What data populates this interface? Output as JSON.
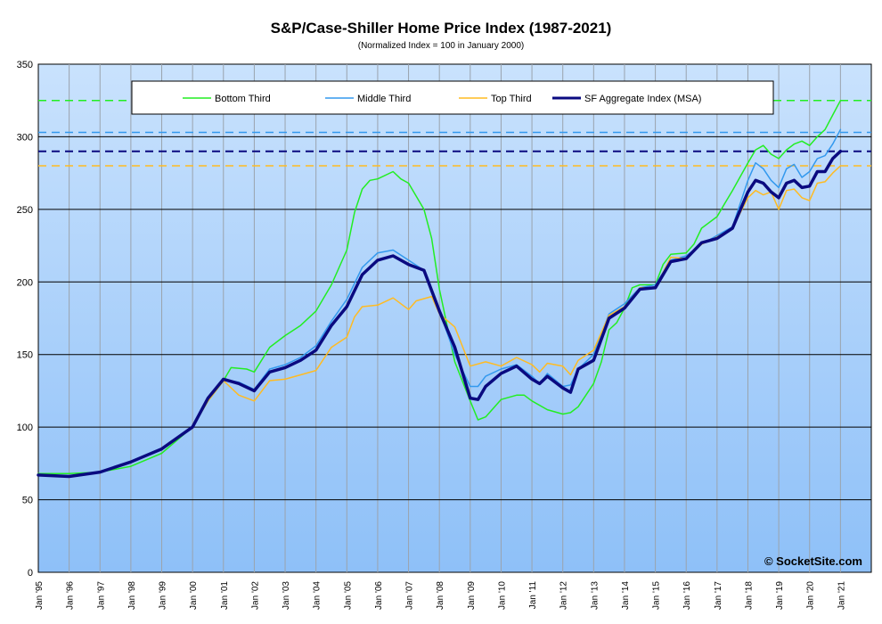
{
  "chart_data": {
    "type": "line",
    "title": "S&P/Case-Shiller Home Price Index (1987-2021)",
    "subtitle": "(Normalized Index = 100 in January 2000)",
    "xlabel": "",
    "ylabel": "",
    "ylim": [
      0,
      350
    ],
    "yticks": [
      0,
      50,
      100,
      150,
      200,
      250,
      300,
      350
    ],
    "xlim": [
      1995.0,
      2022.0
    ],
    "xtick_labels": [
      "Jan '95",
      "Jan '96",
      "Jan '97",
      "Jan '98",
      "Jan '99",
      "Jan '00",
      "Jan '01",
      "Jan '02",
      "Jan '03",
      "Jan '04",
      "Jan '05",
      "Jan '06",
      "Jan '07",
      "Jan '08",
      "Jan '09",
      "Jan '10",
      "Jan '11",
      "Jan '12",
      "Jan '13",
      "Jan '14",
      "Jan '15",
      "Jan '16",
      "Jan '17",
      "Jan '18",
      "Jan '19",
      "Jan '20",
      "Jan '21"
    ],
    "grid": true,
    "legend": "top",
    "watermark": "© SocketSite.com",
    "reference_lines": [
      {
        "series": "Bottom Third",
        "y": 325
      },
      {
        "series": "Middle Third",
        "y": 303
      },
      {
        "series": "SF Aggregate Index (MSA)",
        "y": 290
      },
      {
        "series": "Top Third",
        "y": 280
      }
    ],
    "series": [
      {
        "name": "Bottom Third",
        "color": "#22ee22",
        "width": 1.5,
        "points": [
          [
            1995.0,
            68
          ],
          [
            1996.0,
            68
          ],
          [
            1997.0,
            69
          ],
          [
            1998.0,
            73
          ],
          [
            1999.0,
            82
          ],
          [
            2000.0,
            100
          ],
          [
            2000.5,
            118
          ],
          [
            2001.0,
            132
          ],
          [
            2001.25,
            141
          ],
          [
            2001.75,
            140
          ],
          [
            2002.0,
            138
          ],
          [
            2002.5,
            155
          ],
          [
            2003.0,
            163
          ],
          [
            2003.5,
            170
          ],
          [
            2004.0,
            180
          ],
          [
            2004.5,
            198
          ],
          [
            2005.0,
            222
          ],
          [
            2005.25,
            248
          ],
          [
            2005.5,
            264
          ],
          [
            2005.75,
            270
          ],
          [
            2006.0,
            271
          ],
          [
            2006.5,
            276
          ],
          [
            2006.75,
            271
          ],
          [
            2007.0,
            268
          ],
          [
            2007.5,
            250
          ],
          [
            2007.75,
            230
          ],
          [
            2008.0,
            195
          ],
          [
            2008.5,
            145
          ],
          [
            2009.0,
            118
          ],
          [
            2009.25,
            105
          ],
          [
            2009.5,
            107
          ],
          [
            2010.0,
            119
          ],
          [
            2010.5,
            122
          ],
          [
            2010.75,
            122
          ],
          [
            2011.0,
            118
          ],
          [
            2011.5,
            112
          ],
          [
            2012.0,
            109
          ],
          [
            2012.25,
            110
          ],
          [
            2012.5,
            114
          ],
          [
            2013.0,
            130
          ],
          [
            2013.25,
            145
          ],
          [
            2013.5,
            167
          ],
          [
            2013.75,
            172
          ],
          [
            2014.0,
            182
          ],
          [
            2014.25,
            196
          ],
          [
            2014.5,
            198
          ],
          [
            2015.0,
            198
          ],
          [
            2015.25,
            212
          ],
          [
            2015.5,
            219
          ],
          [
            2016.0,
            220
          ],
          [
            2016.25,
            226
          ],
          [
            2016.5,
            237
          ],
          [
            2017.0,
            245
          ],
          [
            2017.25,
            254
          ],
          [
            2017.5,
            263
          ],
          [
            2018.0,
            282
          ],
          [
            2018.25,
            291
          ],
          [
            2018.5,
            294
          ],
          [
            2018.75,
            288
          ],
          [
            2019.0,
            285
          ],
          [
            2019.25,
            291
          ],
          [
            2019.5,
            295
          ],
          [
            2019.75,
            297
          ],
          [
            2020.0,
            294
          ],
          [
            2020.25,
            300
          ],
          [
            2020.5,
            305
          ],
          [
            2020.75,
            315
          ],
          [
            2021.0,
            325
          ]
        ]
      },
      {
        "name": "Middle Third",
        "color": "#3399ee",
        "width": 1.5,
        "points": [
          [
            1995.0,
            67
          ],
          [
            1996.0,
            66
          ],
          [
            1997.0,
            69
          ],
          [
            1998.0,
            76
          ],
          [
            1999.0,
            85
          ],
          [
            2000.0,
            100
          ],
          [
            2000.5,
            120
          ],
          [
            2001.0,
            133
          ],
          [
            2001.5,
            131
          ],
          [
            2002.0,
            126
          ],
          [
            2002.5,
            140
          ],
          [
            2003.0,
            143
          ],
          [
            2003.5,
            148
          ],
          [
            2004.0,
            156
          ],
          [
            2004.5,
            173
          ],
          [
            2005.0,
            188
          ],
          [
            2005.5,
            210
          ],
          [
            2006.0,
            220
          ],
          [
            2006.5,
            222
          ],
          [
            2007.0,
            215
          ],
          [
            2007.5,
            208
          ],
          [
            2008.0,
            180
          ],
          [
            2008.5,
            150
          ],
          [
            2009.0,
            128
          ],
          [
            2009.25,
            128
          ],
          [
            2009.5,
            135
          ],
          [
            2010.0,
            140
          ],
          [
            2010.5,
            143
          ],
          [
            2011.0,
            135
          ],
          [
            2011.25,
            130
          ],
          [
            2011.5,
            137
          ],
          [
            2012.0,
            128
          ],
          [
            2012.25,
            129
          ],
          [
            2012.5,
            140
          ],
          [
            2013.0,
            150
          ],
          [
            2013.5,
            178
          ],
          [
            2014.0,
            185
          ],
          [
            2014.5,
            196
          ],
          [
            2015.0,
            198
          ],
          [
            2015.5,
            215
          ],
          [
            2016.0,
            218
          ],
          [
            2016.5,
            226
          ],
          [
            2017.0,
            232
          ],
          [
            2017.5,
            238
          ],
          [
            2018.0,
            270
          ],
          [
            2018.25,
            282
          ],
          [
            2018.5,
            278
          ],
          [
            2018.75,
            270
          ],
          [
            2019.0,
            265
          ],
          [
            2019.25,
            278
          ],
          [
            2019.5,
            281
          ],
          [
            2019.75,
            272
          ],
          [
            2020.0,
            276
          ],
          [
            2020.25,
            285
          ],
          [
            2020.5,
            287
          ],
          [
            2020.75,
            295
          ],
          [
            2021.0,
            305
          ]
        ]
      },
      {
        "name": "Top Third",
        "color": "#ffbb22",
        "width": 1.5,
        "points": [
          [
            1995.0,
            67
          ],
          [
            1996.0,
            66
          ],
          [
            1997.0,
            69
          ],
          [
            1998.0,
            76
          ],
          [
            1999.0,
            85
          ],
          [
            2000.0,
            100
          ],
          [
            2000.5,
            118
          ],
          [
            2001.0,
            132
          ],
          [
            2001.5,
            122
          ],
          [
            2002.0,
            118
          ],
          [
            2002.5,
            132
          ],
          [
            2003.0,
            133
          ],
          [
            2003.5,
            136
          ],
          [
            2004.0,
            139
          ],
          [
            2004.5,
            155
          ],
          [
            2005.0,
            162
          ],
          [
            2005.25,
            176
          ],
          [
            2005.5,
            183
          ],
          [
            2006.0,
            184
          ],
          [
            2006.5,
            189
          ],
          [
            2007.0,
            181
          ],
          [
            2007.25,
            187
          ],
          [
            2007.75,
            190
          ],
          [
            2008.0,
            178
          ],
          [
            2008.5,
            169
          ],
          [
            2009.0,
            142
          ],
          [
            2009.5,
            145
          ],
          [
            2010.0,
            142
          ],
          [
            2010.5,
            148
          ],
          [
            2011.0,
            143
          ],
          [
            2011.25,
            138
          ],
          [
            2011.5,
            144
          ],
          [
            2012.0,
            142
          ],
          [
            2012.25,
            136
          ],
          [
            2012.5,
            146
          ],
          [
            2013.0,
            153
          ],
          [
            2013.5,
            177
          ],
          [
            2014.0,
            183
          ],
          [
            2014.5,
            196
          ],
          [
            2015.0,
            196
          ],
          [
            2015.5,
            217
          ],
          [
            2016.0,
            216
          ],
          [
            2016.5,
            226
          ],
          [
            2017.0,
            231
          ],
          [
            2017.5,
            237
          ],
          [
            2018.0,
            258
          ],
          [
            2018.25,
            263
          ],
          [
            2018.5,
            260
          ],
          [
            2018.75,
            262
          ],
          [
            2019.0,
            250
          ],
          [
            2019.25,
            263
          ],
          [
            2019.5,
            264
          ],
          [
            2019.75,
            258
          ],
          [
            2020.0,
            256
          ],
          [
            2020.25,
            268
          ],
          [
            2020.5,
            269
          ],
          [
            2020.75,
            275
          ],
          [
            2021.0,
            280
          ]
        ]
      },
      {
        "name": "SF Aggregate Index (MSA)",
        "color": "#0a0a80",
        "width": 3.5,
        "points": [
          [
            1995.0,
            67
          ],
          [
            1996.0,
            66
          ],
          [
            1997.0,
            69
          ],
          [
            1998.0,
            76
          ],
          [
            1999.0,
            85
          ],
          [
            2000.0,
            100
          ],
          [
            2000.5,
            120
          ],
          [
            2001.0,
            133
          ],
          [
            2001.5,
            130
          ],
          [
            2002.0,
            125
          ],
          [
            2002.5,
            138
          ],
          [
            2003.0,
            141
          ],
          [
            2003.5,
            146
          ],
          [
            2004.0,
            153
          ],
          [
            2004.5,
            170
          ],
          [
            2005.0,
            183
          ],
          [
            2005.5,
            205
          ],
          [
            2006.0,
            215
          ],
          [
            2006.5,
            218
          ],
          [
            2007.0,
            212
          ],
          [
            2007.5,
            208
          ],
          [
            2008.0,
            180
          ],
          [
            2008.5,
            155
          ],
          [
            2009.0,
            120
          ],
          [
            2009.25,
            119
          ],
          [
            2009.5,
            128
          ],
          [
            2010.0,
            137
          ],
          [
            2010.5,
            142
          ],
          [
            2011.0,
            133
          ],
          [
            2011.25,
            130
          ],
          [
            2011.5,
            135
          ],
          [
            2012.0,
            127
          ],
          [
            2012.25,
            124
          ],
          [
            2012.5,
            140
          ],
          [
            2013.0,
            146
          ],
          [
            2013.5,
            175
          ],
          [
            2014.0,
            182
          ],
          [
            2014.5,
            195
          ],
          [
            2015.0,
            196
          ],
          [
            2015.5,
            214
          ],
          [
            2016.0,
            216
          ],
          [
            2016.5,
            227
          ],
          [
            2017.0,
            230
          ],
          [
            2017.5,
            237
          ],
          [
            2018.0,
            262
          ],
          [
            2018.25,
            270
          ],
          [
            2018.5,
            268
          ],
          [
            2018.75,
            262
          ],
          [
            2019.0,
            258
          ],
          [
            2019.25,
            268
          ],
          [
            2019.5,
            270
          ],
          [
            2019.75,
            265
          ],
          [
            2020.0,
            266
          ],
          [
            2020.25,
            276
          ],
          [
            2020.5,
            276
          ],
          [
            2020.75,
            285
          ],
          [
            2021.0,
            290
          ]
        ]
      }
    ]
  }
}
